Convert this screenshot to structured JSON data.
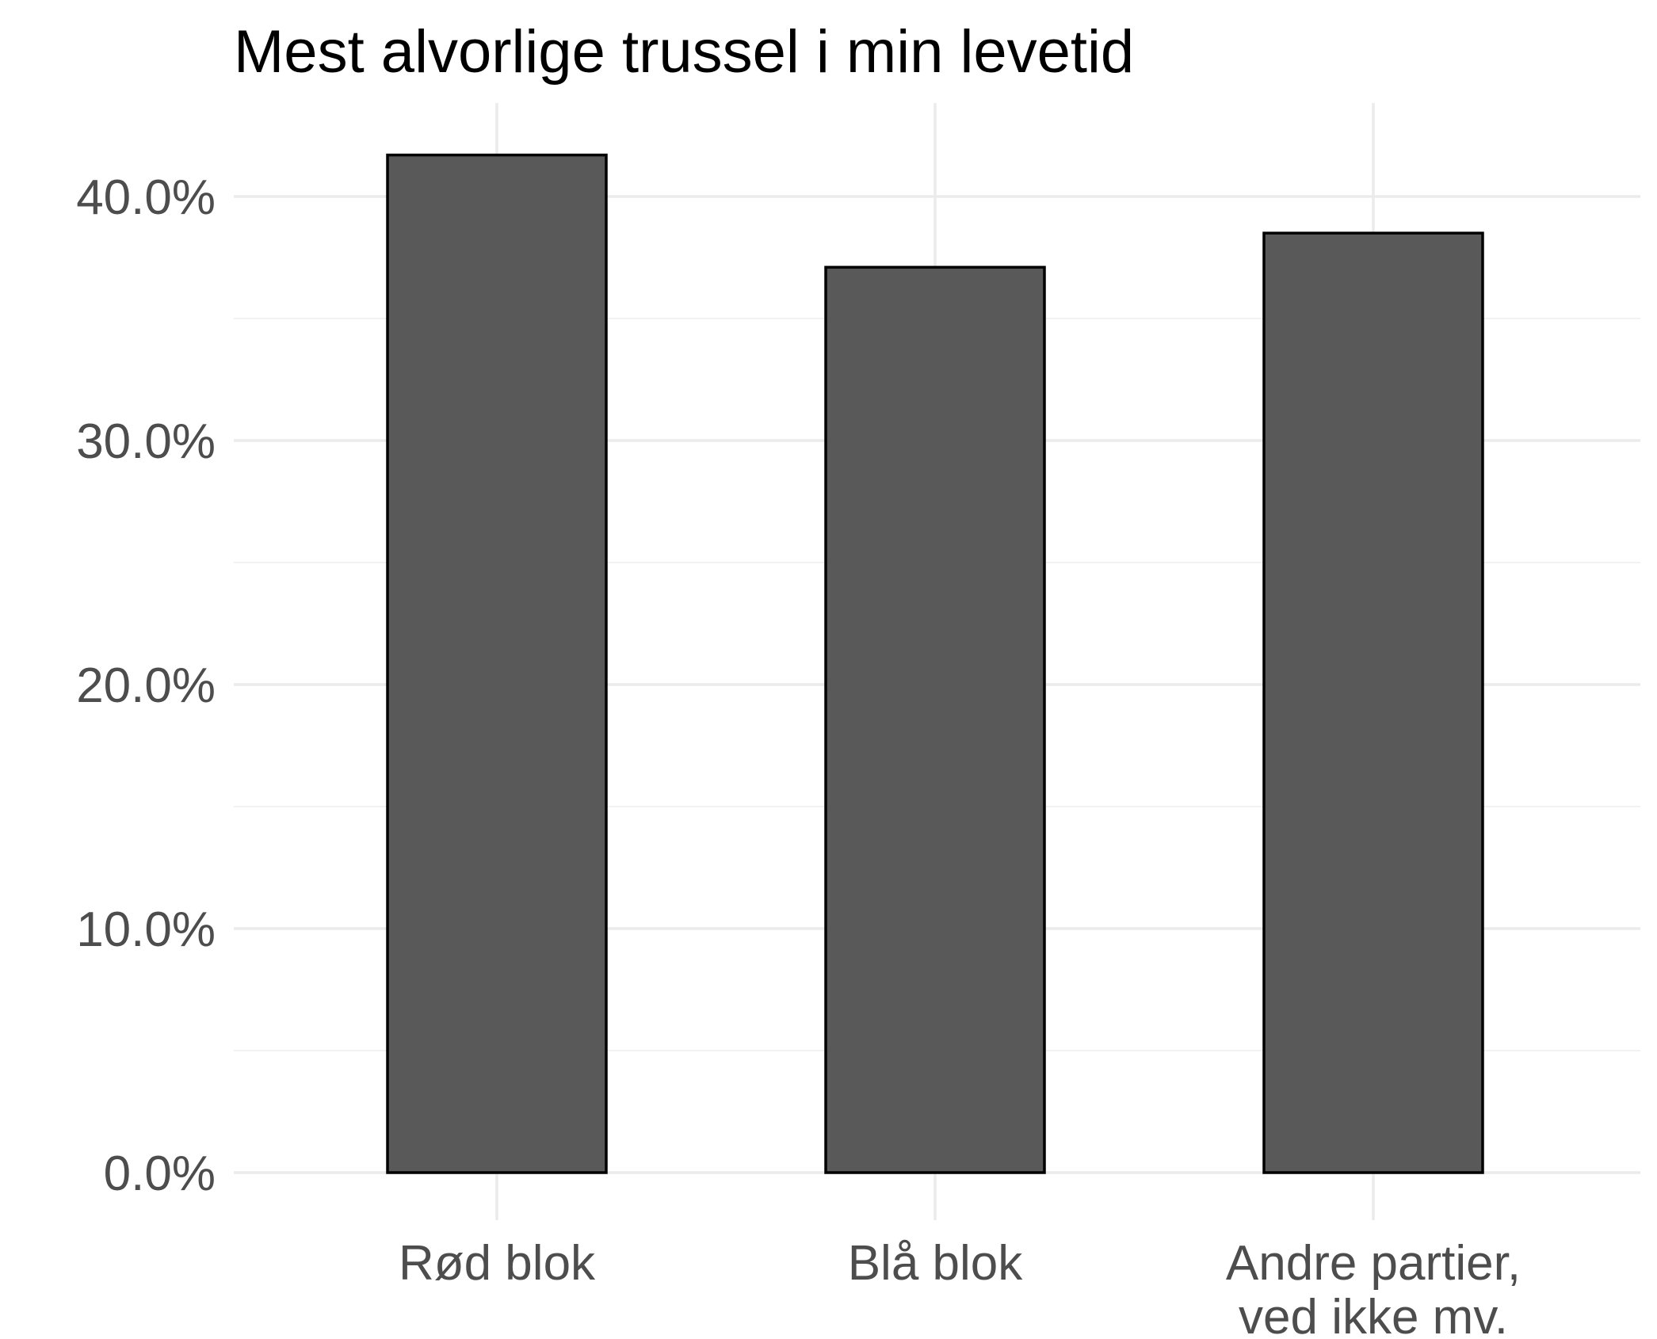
{
  "chart_data": {
    "type": "bar",
    "title": "Mest alvorlige trussel i min levetid",
    "xlabel": "",
    "ylabel": "",
    "categories": [
      [
        "Rød blok"
      ],
      [
        "Blå blok"
      ],
      [
        "Andre partier,",
        "ved ikke mv."
      ]
    ],
    "values": [
      41.7,
      37.1,
      38.5
    ],
    "ylim": [
      0,
      43
    ],
    "yticks": [
      0,
      10,
      20,
      30,
      40
    ],
    "ytick_labels": [
      "0.0%",
      "10.0%",
      "20.0%",
      "30.0%",
      "40.0%"
    ],
    "grid": true,
    "legend": "none",
    "colors": {
      "bar_fill": "#595959",
      "bar_stroke": "#000000",
      "grid_major": "#ebebeb",
      "grid_minor": "#f2f2f2",
      "tick_text": "#4d4d4d"
    }
  }
}
